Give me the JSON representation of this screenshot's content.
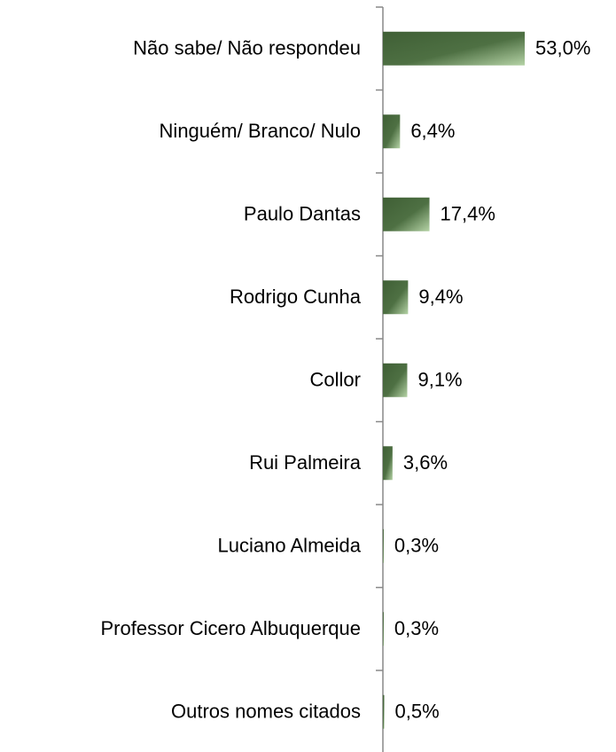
{
  "chart_data": {
    "type": "bar",
    "orientation": "horizontal",
    "categories": [
      "Não sabe/ Não respondeu",
      "Ninguém/ Branco/ Nulo",
      "Paulo Dantas",
      "Rodrigo Cunha",
      "Collor",
      "Rui Palmeira",
      "Luciano Almeida",
      "Professor Cicero Albuquerque",
      "Outros nomes citados"
    ],
    "values": [
      53.0,
      6.4,
      17.4,
      9.4,
      9.1,
      3.6,
      0.3,
      0.3,
      0.5
    ],
    "value_labels": [
      "53,0%",
      "6,4%",
      "17,4%",
      "9,4%",
      "9,1%",
      "3,6%",
      "0,3%",
      "0,3%",
      "0,5%"
    ],
    "color": "#4a6b3e"
  }
}
